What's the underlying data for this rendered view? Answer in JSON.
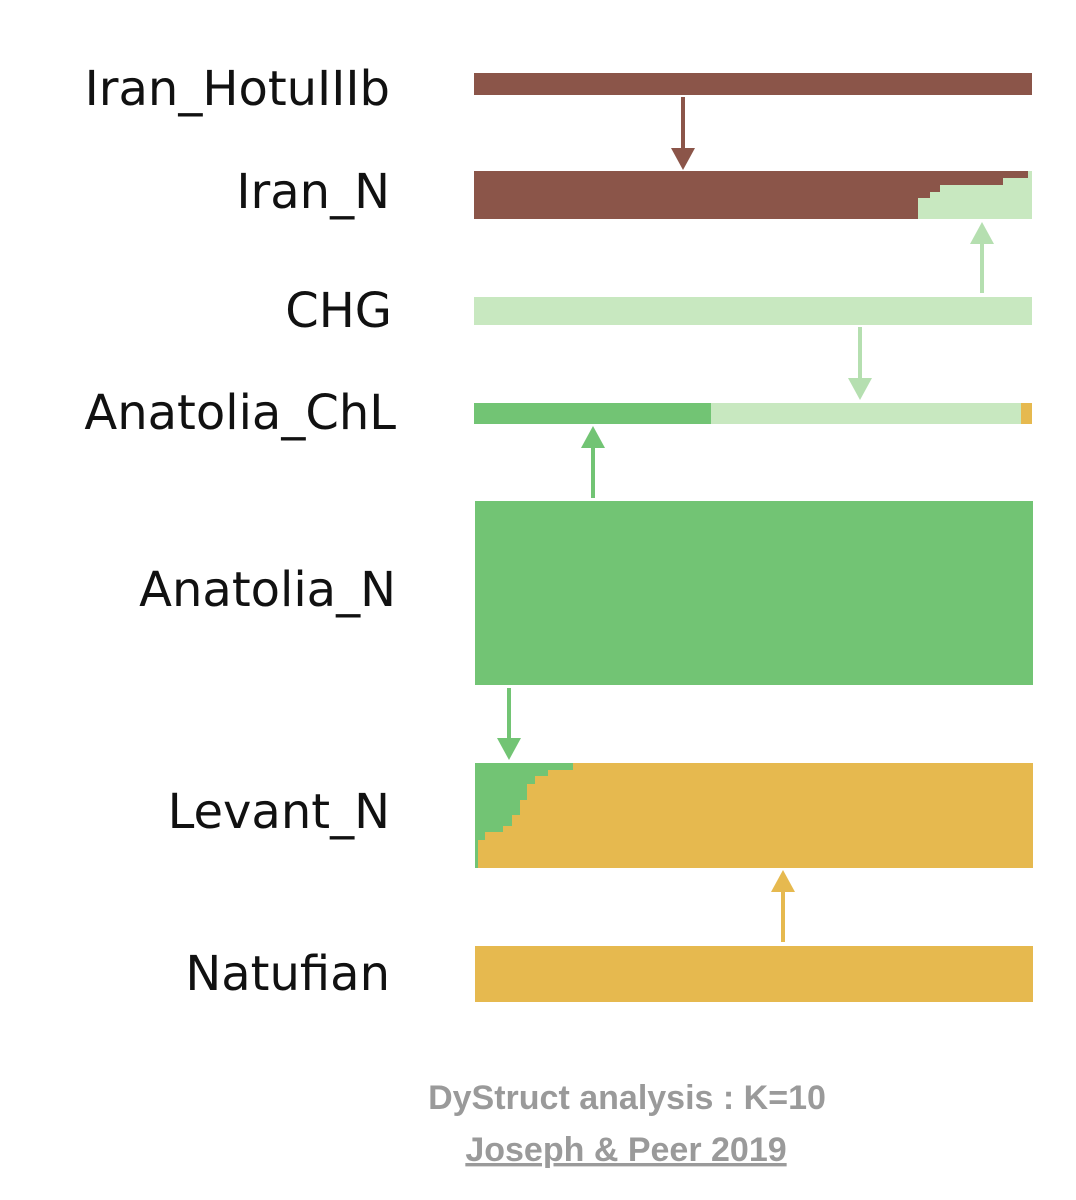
{
  "populations": [
    {
      "label": "Iran_HotuIIIb"
    },
    {
      "label": "Iran_N"
    },
    {
      "label": "CHG"
    },
    {
      "label": "Anatolia_ChL"
    },
    {
      "label": "Anatolia_N"
    },
    {
      "label": "Levant_N"
    },
    {
      "label": "Natufian"
    }
  ],
  "caption": {
    "title": "DyStruct analysis : K=10",
    "citation": "Joseph & Peer 2019"
  }
}
